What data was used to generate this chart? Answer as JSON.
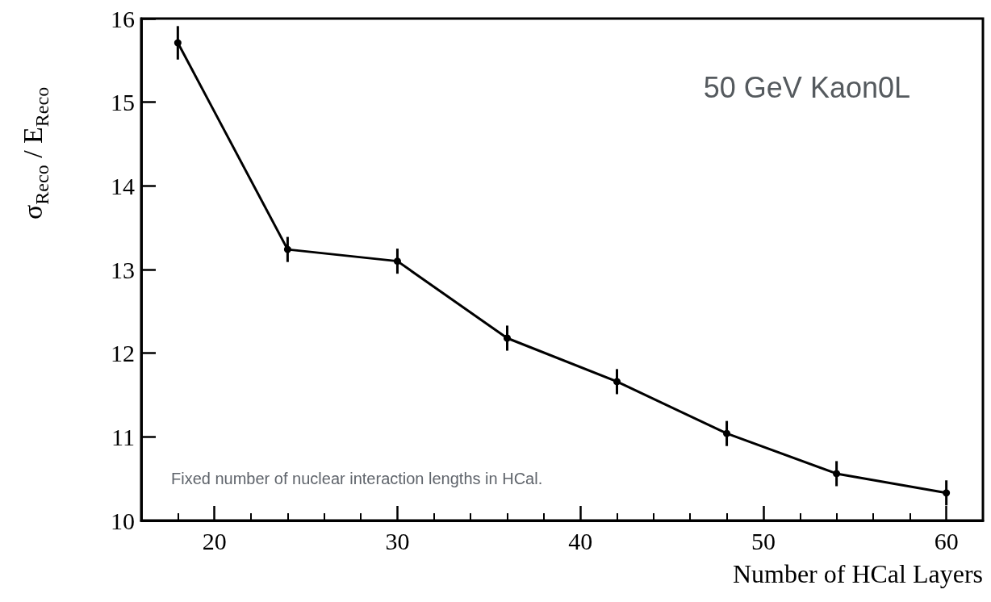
{
  "chart_data": {
    "type": "line",
    "xlabel": "Number of HCal Layers",
    "ylabel": "σ$_{Reco}$ / E$_{Reco}$",
    "annotations": [
      "50 GeV Kaon0L",
      "Fixed number of nuclear interaction lengths in HCal."
    ],
    "x": [
      18,
      24,
      30,
      36,
      42,
      48,
      54,
      60
    ],
    "series": [
      {
        "color": "#000000",
        "values": [
          15.71,
          13.24,
          13.1,
          12.18,
          11.66,
          11.04,
          10.56,
          10.33
        ],
        "errors": [
          0.2,
          0.15,
          0.15,
          0.15,
          0.15,
          0.15,
          0.15,
          0.15
        ]
      }
    ],
    "xlim": [
      16,
      62
    ],
    "xticks": [
      20,
      30,
      40,
      50,
      60
    ],
    "ylim": [
      10,
      16
    ],
    "yticks": [
      10,
      11,
      12,
      13,
      14,
      15,
      16
    ],
    "grid": false,
    "marker": "circle",
    "line_style": "solid"
  }
}
